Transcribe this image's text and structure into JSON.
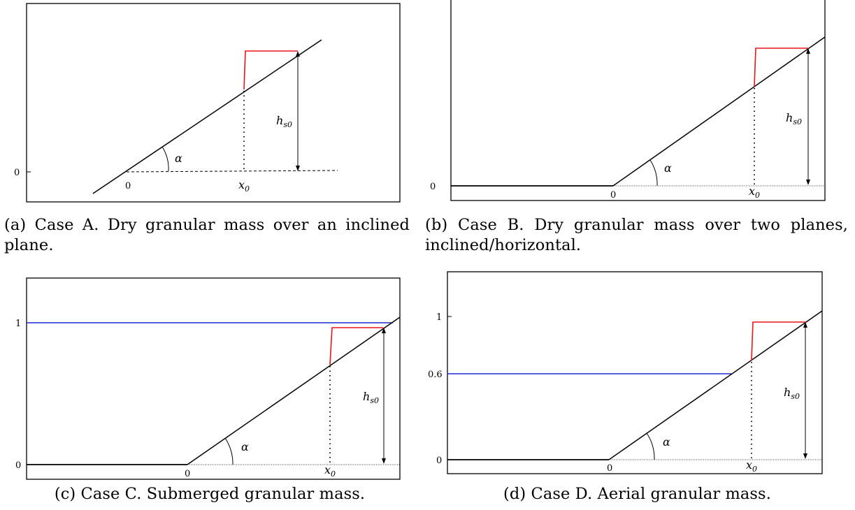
{
  "figure": {
    "panel_a": {
      "caption": "(a) Case A. Dry granular mass over an inclined plane.",
      "y_tick_labels": [
        "0"
      ],
      "x_tick_labels": [
        "0",
        "x0"
      ],
      "labels": {
        "angle": "α",
        "height": "h",
        "height_subscript": "s0",
        "x0": "x",
        "x0_subscript": "0"
      },
      "colors": {
        "frame": "#000000",
        "slope": "#000000",
        "mass": "#e8141b"
      }
    },
    "panel_b": {
      "caption": "(b) Case B. Dry granular mass over two planes, inclined/horizontal.",
      "y_tick_labels": [
        "0"
      ],
      "x_tick_labels": [
        "0",
        "x0"
      ],
      "labels": {
        "angle": "α",
        "height": "h",
        "height_subscript": "s0",
        "x0": "x",
        "x0_subscript": "0"
      },
      "colors": {
        "frame": "#000000",
        "slope": "#000000",
        "mass": "#e8141b"
      }
    },
    "panel_c": {
      "caption": "(c) Case C. Submerged granular mass.",
      "y_tick_labels": [
        "0",
        "1"
      ],
      "x_tick_labels": [
        "0",
        "x0"
      ],
      "labels": {
        "angle": "α",
        "height": "h",
        "height_subscript": "s0",
        "x0": "x",
        "x0_subscript": "0"
      },
      "colors": {
        "frame": "#000000",
        "slope": "#000000",
        "mass": "#e8141b",
        "water": "#1c2bd6"
      }
    },
    "panel_d": {
      "caption": "(d) Case D. Aerial granular mass.",
      "y_tick_labels": [
        "0",
        "0.6",
        "1"
      ],
      "x_tick_labels": [
        "0",
        "x0"
      ],
      "labels": {
        "angle": "α",
        "height": "h",
        "height_subscript": "s0",
        "x0": "x",
        "x0_subscript": "0"
      },
      "colors": {
        "frame": "#000000",
        "slope": "#000000",
        "mass": "#e8141b",
        "water": "#1c2bd6"
      }
    }
  }
}
